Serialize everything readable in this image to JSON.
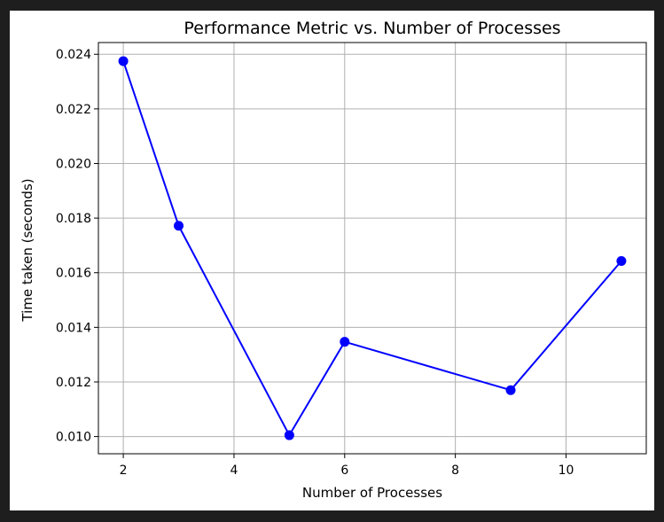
{
  "chart_data": {
    "type": "line",
    "title": "Performance Metric vs. Number of Processes",
    "xlabel": "Number of Processes",
    "ylabel": "Time taken (seconds)",
    "xlim": [
      1.55,
      11.45
    ],
    "ylim": [
      0.00937,
      0.02443
    ],
    "x_ticks": [
      2,
      4,
      6,
      8,
      10
    ],
    "x_tick_labels": [
      "2",
      "4",
      "6",
      "8",
      "10"
    ],
    "y_ticks": [
      0.01,
      0.012,
      0.014,
      0.016,
      0.018,
      0.02,
      0.022,
      0.024
    ],
    "y_tick_labels": [
      "0.010",
      "0.012",
      "0.014",
      "0.016",
      "0.018",
      "0.020",
      "0.022",
      "0.024"
    ],
    "grid": true,
    "series": [
      {
        "color": "#0000ff",
        "marker": "circle",
        "points": [
          {
            "x": 2,
            "y": 0.02375
          },
          {
            "x": 3,
            "y": 0.01772
          },
          {
            "x": 5,
            "y": 0.01005
          },
          {
            "x": 6,
            "y": 0.01347
          },
          {
            "x": 9,
            "y": 0.0117
          },
          {
            "x": 11,
            "y": 0.01643
          }
        ]
      }
    ]
  }
}
